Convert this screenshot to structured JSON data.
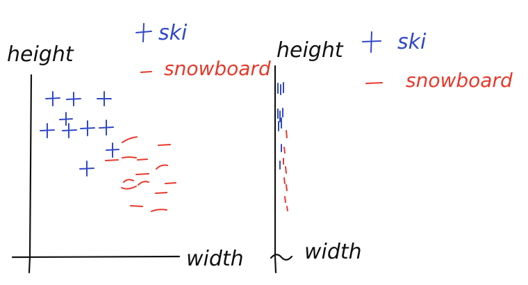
{
  "left_panel": {
    "ylabel": "height",
    "xlabel": "width",
    "legend": [
      {
        "symbol": "+",
        "label": "ski",
        "color": "#2f47c9"
      },
      {
        "symbol": "—",
        "label": "snowboard",
        "color": "#e8382a"
      }
    ]
  },
  "right_panel": {
    "ylabel": "height",
    "xlabel": "width",
    "legend": [
      {
        "symbol": "+",
        "label": "ski",
        "color": "#2f47c9"
      },
      {
        "symbol": "—",
        "label": "snowboard",
        "color": "#e8382a"
      }
    ]
  },
  "colors": {
    "ink": "#111111",
    "ski": "#2f47c9",
    "snowboard": "#e8382a"
  }
}
